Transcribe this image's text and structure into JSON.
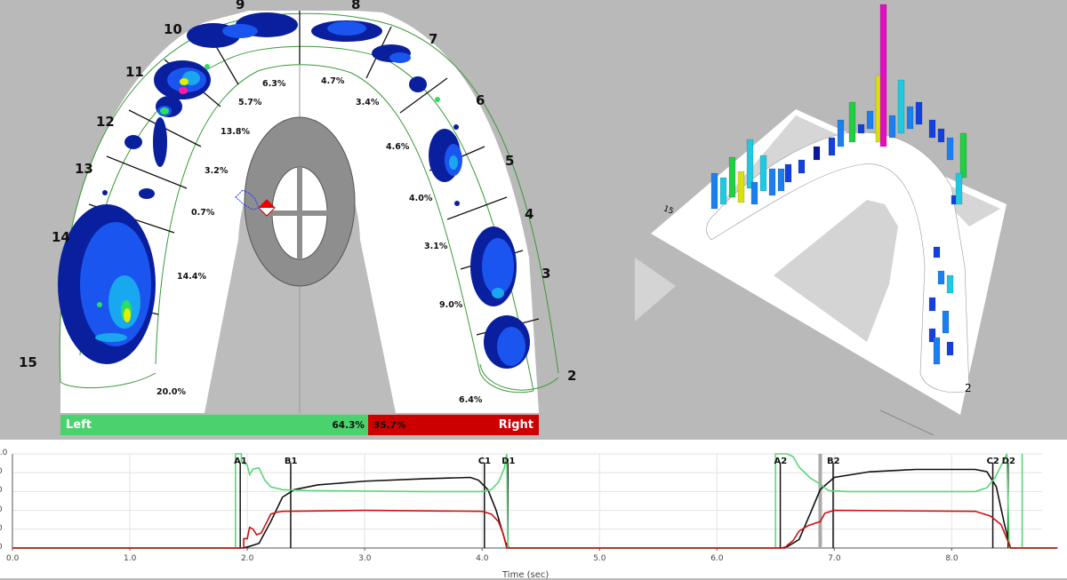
{
  "arch_view": {
    "tooth_numbers": [
      "9",
      "8",
      "10",
      "7",
      "11",
      "6",
      "12",
      "5",
      "13",
      "4",
      "14",
      "3",
      "15",
      "2"
    ],
    "percentages": [
      "6.3%",
      "4.7%",
      "5.7%",
      "3.4%",
      "13.8%",
      "4.6%",
      "3.2%",
      "4.0%",
      "0.7%",
      "3.1%",
      "14.4%",
      "9.0%",
      "20.0%",
      "6.4%"
    ],
    "force_bar": {
      "left_label": "Left",
      "left_pct": "64.3%",
      "left_value": 64.3,
      "left_color": "#4ad26e",
      "right_label": "Right",
      "right_pct": "35.7%",
      "right_value": 35.7,
      "right_color": "#cc0000"
    }
  },
  "view_3d": {
    "labels": [
      "15",
      "2"
    ],
    "play_icon": "play-triangle-icon"
  },
  "chart_data": {
    "type": "line",
    "xlabel": "Time (sec)",
    "xlim": [
      0,
      8.9
    ],
    "ylim": [
      0,
      100
    ],
    "x_ticks": [
      "0.0",
      "1.0",
      "2.0",
      "3.0",
      "4.0",
      "5.0",
      "6.0",
      "7.0",
      "8.0"
    ],
    "y_ticks_visible": [
      "0.0",
      ".0",
      ".0",
      ".0",
      ".0",
      ".0"
    ],
    "grid": true,
    "series": [
      {
        "color": "#111111",
        "points": [
          [
            0,
            0
          ],
          [
            1.95,
            0
          ],
          [
            2.0,
            1
          ],
          [
            2.1,
            5
          ],
          [
            2.2,
            28
          ],
          [
            2.3,
            54
          ],
          [
            2.4,
            62
          ],
          [
            2.6,
            67
          ],
          [
            3.0,
            71
          ],
          [
            3.5,
            73.5
          ],
          [
            3.9,
            75
          ],
          [
            3.97,
            72
          ],
          [
            4.05,
            62
          ],
          [
            4.12,
            40
          ],
          [
            4.2,
            6
          ],
          [
            4.23,
            0
          ],
          [
            6.55,
            0
          ],
          [
            6.6,
            1.5
          ],
          [
            6.7,
            9
          ],
          [
            6.8,
            38
          ],
          [
            6.88,
            62
          ],
          [
            7.0,
            75
          ],
          [
            7.3,
            81
          ],
          [
            7.7,
            83.5
          ],
          [
            8.2,
            83.5
          ],
          [
            8.3,
            81
          ],
          [
            8.38,
            65
          ],
          [
            8.45,
            25
          ],
          [
            8.5,
            0
          ],
          [
            8.9,
            0
          ]
        ]
      },
      {
        "color": "#5ad677",
        "points": [
          [
            0,
            0
          ],
          [
            1.9,
            0
          ],
          [
            1.9,
            100
          ],
          [
            1.95,
            100
          ],
          [
            1.95,
            92
          ],
          [
            2.0,
            88
          ],
          [
            2.02,
            78
          ],
          [
            2.05,
            84
          ],
          [
            2.1,
            85
          ],
          [
            2.15,
            72
          ],
          [
            2.2,
            65
          ],
          [
            2.3,
            62
          ],
          [
            2.5,
            61
          ],
          [
            3.5,
            60
          ],
          [
            4.0,
            60
          ],
          [
            4.08,
            62
          ],
          [
            4.14,
            70
          ],
          [
            4.19,
            85
          ],
          [
            4.21,
            100
          ],
          [
            4.22,
            0
          ],
          [
            6.5,
            0
          ],
          [
            6.5,
            100
          ],
          [
            6.6,
            100
          ],
          [
            6.65,
            97
          ],
          [
            6.7,
            86
          ],
          [
            6.8,
            74
          ],
          [
            6.88,
            68
          ],
          [
            6.95,
            61
          ],
          [
            7.1,
            60
          ],
          [
            8.2,
            60
          ],
          [
            8.3,
            64
          ],
          [
            8.37,
            75
          ],
          [
            8.43,
            90
          ],
          [
            8.47,
            100
          ],
          [
            8.49,
            0
          ],
          [
            8.6,
            0
          ],
          [
            8.6,
            100
          ],
          [
            8.6,
            0
          ],
          [
            8.9,
            0
          ]
        ]
      },
      {
        "color": "#cc1111",
        "points": [
          [
            0,
            0
          ],
          [
            1.97,
            0
          ],
          [
            1.97,
            10
          ],
          [
            2.0,
            10
          ],
          [
            2.02,
            22
          ],
          [
            2.05,
            20
          ],
          [
            2.08,
            14
          ],
          [
            2.12,
            16
          ],
          [
            2.16,
            26
          ],
          [
            2.2,
            36
          ],
          [
            2.25,
            38
          ],
          [
            2.3,
            39
          ],
          [
            3.0,
            40
          ],
          [
            4.0,
            39
          ],
          [
            4.08,
            36
          ],
          [
            4.14,
            28
          ],
          [
            4.18,
            15
          ],
          [
            4.21,
            0
          ],
          [
            6.58,
            0
          ],
          [
            6.6,
            3
          ],
          [
            6.65,
            8
          ],
          [
            6.7,
            18
          ],
          [
            6.78,
            24
          ],
          [
            6.88,
            28
          ],
          [
            6.92,
            37
          ],
          [
            7.0,
            40
          ],
          [
            8.2,
            39
          ],
          [
            8.33,
            34
          ],
          [
            8.42,
            25
          ],
          [
            8.47,
            10
          ],
          [
            8.5,
            0
          ],
          [
            8.9,
            0
          ]
        ]
      }
    ],
    "markers": [
      {
        "label": "A1",
        "x": 1.94
      },
      {
        "label": "B1",
        "x": 2.37
      },
      {
        "label": "C1",
        "x": 4.02
      },
      {
        "label": "D1",
        "x": 4.22
      },
      {
        "label": "A2",
        "x": 6.54
      },
      {
        "label": "B2",
        "x": 6.99
      },
      {
        "label": "C2",
        "x": 8.35
      },
      {
        "label": "D2",
        "x": 8.48
      }
    ],
    "cursor_x": 6.88
  }
}
